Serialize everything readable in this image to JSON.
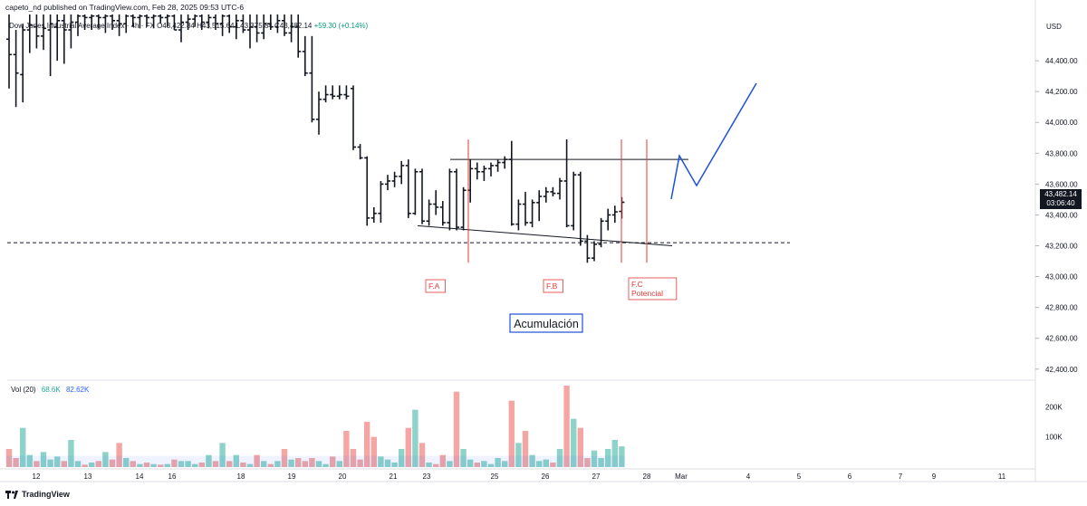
{
  "header": {
    "publisher": "capeto_nd published on TradingView.com, Feb 28, 2025 09:53 UTC-6"
  },
  "legend": {
    "text": "Dow Jones Industrial Average Index · 4h · FX",
    "open": "O43,422.84",
    "high": "H43,515.64",
    "low": "L43,375.84",
    "close": "C43,482.14",
    "change": "+59.30 (+0.14%)"
  },
  "currency": "USD",
  "last_price": {
    "value": "43,482.14",
    "countdown": "03:06:40"
  },
  "volume_legend": {
    "label": "Vol (20)",
    "value1": "68.6K",
    "value2": "82.62K"
  },
  "footer": {
    "brand": "TradingView"
  },
  "colors": {
    "up": "#26a69a",
    "down": "#ef5350",
    "bar": "#131722",
    "annotation_blue": "#1e50d6",
    "phase_red": "#e53935"
  },
  "chart_data": {
    "type": "ohlc-bar",
    "price_axis": {
      "ylim": [
        42340,
        44700
      ],
      "ticks": [
        "44,400.00",
        "44,200.00",
        "44,000.00",
        "43,800.00",
        "43,600.00",
        "43,400.00",
        "43,200.00",
        "43,000.00",
        "42,800.00",
        "42,600.00",
        "42,400.00"
      ],
      "tick_values": [
        44400,
        44200,
        44000,
        43800,
        43600,
        43400,
        43200,
        43000,
        42800,
        42600,
        42400
      ]
    },
    "volume_axis": {
      "ticks": [
        "200K",
        "100K"
      ],
      "tick_values": [
        200000,
        100000
      ],
      "ylim": [
        0,
        270000
      ]
    },
    "x_axis": {
      "labels": [
        "12",
        "13",
        "14",
        "16",
        "18",
        "19",
        "20",
        "21",
        "23",
        "25",
        "26",
        "27",
        "28",
        "Mar",
        "4",
        "5",
        "6",
        "7",
        "9",
        "11"
      ]
    },
    "bars": [
      {
        "o": 44540,
        "h": 44700,
        "l": 44220,
        "c": 44440,
        "v": 60000,
        "up": false
      },
      {
        "o": 44440,
        "h": 44600,
        "l": 44100,
        "c": 44320,
        "v": 30000,
        "up": false
      },
      {
        "o": 44310,
        "h": 44640,
        "l": 44130,
        "c": 44600,
        "v": 130000,
        "up": true
      },
      {
        "o": 44600,
        "h": 44700,
        "l": 44450,
        "c": 44630,
        "v": 40000,
        "up": true
      },
      {
        "o": 44620,
        "h": 44700,
        "l": 44480,
        "c": 44560,
        "v": 20000,
        "up": false
      },
      {
        "o": 44560,
        "h": 44700,
        "l": 44470,
        "c": 44610,
        "v": 50000,
        "up": true
      },
      {
        "o": 44600,
        "h": 44700,
        "l": 44300,
        "c": 44640,
        "v": 25000,
        "up": true
      },
      {
        "o": 44620,
        "h": 44700,
        "l": 44400,
        "c": 44660,
        "v": 35000,
        "up": true
      },
      {
        "o": 44660,
        "h": 44700,
        "l": 44380,
        "c": 44600,
        "v": 20000,
        "up": false
      },
      {
        "o": 44600,
        "h": 44700,
        "l": 44480,
        "c": 44650,
        "v": 90000,
        "up": true
      },
      {
        "o": 44650,
        "h": 44700,
        "l": 44560,
        "c": 44690,
        "v": 20000,
        "up": true
      },
      {
        "o": 44690,
        "h": 44700,
        "l": 44600,
        "c": 44680,
        "v": 8000,
        "up": false
      },
      {
        "o": 44680,
        "h": 44700,
        "l": 44600,
        "c": 44690,
        "v": 15000,
        "up": true
      },
      {
        "o": 44690,
        "h": 44700,
        "l": 44610,
        "c": 44680,
        "v": 20000,
        "up": false
      },
      {
        "o": 44680,
        "h": 44700,
        "l": 44580,
        "c": 44690,
        "v": 50000,
        "up": true
      },
      {
        "o": 44690,
        "h": 44700,
        "l": 44600,
        "c": 44660,
        "v": 25000,
        "up": false
      },
      {
        "o": 44660,
        "h": 44700,
        "l": 44560,
        "c": 44640,
        "v": 80000,
        "up": false
      },
      {
        "o": 44640,
        "h": 44700,
        "l": 44580,
        "c": 44690,
        "v": 30000,
        "up": true
      },
      {
        "o": 44690,
        "h": 44700,
        "l": 44620,
        "c": 44680,
        "v": 20000,
        "up": false
      },
      {
        "o": 44680,
        "h": 44700,
        "l": 44610,
        "c": 44690,
        "v": 10000,
        "up": true
      },
      {
        "o": 44690,
        "h": 44700,
        "l": 44620,
        "c": 44680,
        "v": 15000,
        "up": false
      },
      {
        "o": 44680,
        "h": 44700,
        "l": 44610,
        "c": 44690,
        "v": 10000,
        "up": true
      },
      {
        "o": 44690,
        "h": 44700,
        "l": 44640,
        "c": 44680,
        "v": 8000,
        "up": false
      },
      {
        "o": 44680,
        "h": 44700,
        "l": 44620,
        "c": 44690,
        "v": 10000,
        "up": true
      },
      {
        "o": 44690,
        "h": 44700,
        "l": 44600,
        "c": 44600,
        "v": 25000,
        "up": false
      },
      {
        "o": 44600,
        "h": 44700,
        "l": 44520,
        "c": 44650,
        "v": 20000,
        "up": true
      },
      {
        "o": 44650,
        "h": 44700,
        "l": 44600,
        "c": 44670,
        "v": 20000,
        "up": true
      },
      {
        "o": 44670,
        "h": 44700,
        "l": 44620,
        "c": 44690,
        "v": 10000,
        "up": true
      },
      {
        "o": 44690,
        "h": 44700,
        "l": 44600,
        "c": 44650,
        "v": 15000,
        "up": false
      },
      {
        "o": 44650,
        "h": 44700,
        "l": 44610,
        "c": 44680,
        "v": 40000,
        "up": true
      },
      {
        "o": 44680,
        "h": 44700,
        "l": 44600,
        "c": 44640,
        "v": 20000,
        "up": false
      },
      {
        "o": 44640,
        "h": 44700,
        "l": 44560,
        "c": 44690,
        "v": 80000,
        "up": true
      },
      {
        "o": 44690,
        "h": 44700,
        "l": 44580,
        "c": 44620,
        "v": 20000,
        "up": false
      },
      {
        "o": 44620,
        "h": 44700,
        "l": 44540,
        "c": 44660,
        "v": 40000,
        "up": true
      },
      {
        "o": 44660,
        "h": 44700,
        "l": 44580,
        "c": 44600,
        "v": 15000,
        "up": false
      },
      {
        "o": 44600,
        "h": 44700,
        "l": 44480,
        "c": 44620,
        "v": 10000,
        "up": true
      },
      {
        "o": 44620,
        "h": 44700,
        "l": 44520,
        "c": 44580,
        "v": 40000,
        "up": false
      },
      {
        "o": 44580,
        "h": 44700,
        "l": 44540,
        "c": 44640,
        "v": 20000,
        "up": true
      },
      {
        "o": 44640,
        "h": 44700,
        "l": 44600,
        "c": 44620,
        "v": 10000,
        "up": false
      },
      {
        "o": 44620,
        "h": 44700,
        "l": 44580,
        "c": 44660,
        "v": 20000,
        "up": true
      },
      {
        "o": 44660,
        "h": 44700,
        "l": 44560,
        "c": 44580,
        "v": 60000,
        "up": false
      },
      {
        "o": 44580,
        "h": 44700,
        "l": 44520,
        "c": 44620,
        "v": 25000,
        "up": true
      },
      {
        "o": 44620,
        "h": 44700,
        "l": 44420,
        "c": 44460,
        "v": 30000,
        "up": false
      },
      {
        "o": 44460,
        "h": 44560,
        "l": 44300,
        "c": 44320,
        "v": 20000,
        "up": false
      },
      {
        "o": 44320,
        "h": 44560,
        "l": 44000,
        "c": 44020,
        "v": 30000,
        "up": false
      },
      {
        "o": 44020,
        "h": 44200,
        "l": 43920,
        "c": 44150,
        "v": 20000,
        "up": true
      },
      {
        "o": 44150,
        "h": 44240,
        "l": 44130,
        "c": 44180,
        "v": 10000,
        "up": true
      },
      {
        "o": 44180,
        "h": 44240,
        "l": 44150,
        "c": 44170,
        "v": 35000,
        "up": false
      },
      {
        "o": 44170,
        "h": 44240,
        "l": 44150,
        "c": 44180,
        "v": 20000,
        "up": true
      },
      {
        "o": 44180,
        "h": 44240,
        "l": 44150,
        "c": 44170,
        "v": 120000,
        "up": false
      },
      {
        "o": 44220,
        "h": 44240,
        "l": 43820,
        "c": 43840,
        "v": 60000,
        "up": false
      },
      {
        "o": 43840,
        "h": 43860,
        "l": 43760,
        "c": 43770,
        "v": 25000,
        "up": false
      },
      {
        "o": 43770,
        "h": 43780,
        "l": 43330,
        "c": 43380,
        "v": 150000,
        "up": false
      },
      {
        "o": 43380,
        "h": 43450,
        "l": 43350,
        "c": 43410,
        "v": 100000,
        "up": false
      },
      {
        "o": 43410,
        "h": 43620,
        "l": 43350,
        "c": 43600,
        "v": 35000,
        "up": true
      },
      {
        "o": 43600,
        "h": 43660,
        "l": 43560,
        "c": 43620,
        "v": 25000,
        "up": true
      },
      {
        "o": 43620,
        "h": 43680,
        "l": 43580,
        "c": 43650,
        "v": 15000,
        "up": true
      },
      {
        "o": 43650,
        "h": 43750,
        "l": 43600,
        "c": 43720,
        "v": 60000,
        "up": true
      },
      {
        "o": 43720,
        "h": 43760,
        "l": 43380,
        "c": 43410,
        "v": 130000,
        "up": false
      },
      {
        "o": 43410,
        "h": 43700,
        "l": 43400,
        "c": 43680,
        "v": 190000,
        "up": true
      },
      {
        "o": 43680,
        "h": 43700,
        "l": 43340,
        "c": 43360,
        "v": 80000,
        "up": false
      },
      {
        "o": 43360,
        "h": 43500,
        "l": 43330,
        "c": 43470,
        "v": 15000,
        "up": true
      },
      {
        "o": 43470,
        "h": 43560,
        "l": 43400,
        "c": 43450,
        "v": 10000,
        "up": false
      },
      {
        "o": 43450,
        "h": 43490,
        "l": 43330,
        "c": 43350,
        "v": 40000,
        "up": false
      },
      {
        "o": 43350,
        "h": 43700,
        "l": 43300,
        "c": 43680,
        "v": 20000,
        "up": true
      },
      {
        "o": 43680,
        "h": 43700,
        "l": 43300,
        "c": 43320,
        "v": 250000,
        "up": false
      },
      {
        "o": 43320,
        "h": 43580,
        "l": 43300,
        "c": 43560,
        "v": 60000,
        "up": true
      },
      {
        "o": 43560,
        "h": 43760,
        "l": 43480,
        "c": 43700,
        "v": 25000,
        "up": true
      },
      {
        "o": 43700,
        "h": 43740,
        "l": 43630,
        "c": 43680,
        "v": 15000,
        "up": false
      },
      {
        "o": 43680,
        "h": 43720,
        "l": 43620,
        "c": 43700,
        "v": 20000,
        "up": true
      },
      {
        "o": 43700,
        "h": 43740,
        "l": 43650,
        "c": 43720,
        "v": 10000,
        "up": true
      },
      {
        "o": 43720,
        "h": 43760,
        "l": 43680,
        "c": 43740,
        "v": 30000,
        "up": true
      },
      {
        "o": 43740,
        "h": 43780,
        "l": 43700,
        "c": 43760,
        "v": 20000,
        "up": true
      },
      {
        "o": 43760,
        "h": 43880,
        "l": 43330,
        "c": 43340,
        "v": 220000,
        "up": false
      },
      {
        "o": 43340,
        "h": 43500,
        "l": 43300,
        "c": 43470,
        "v": 80000,
        "up": true
      },
      {
        "o": 43470,
        "h": 43550,
        "l": 43330,
        "c": 43350,
        "v": 120000,
        "up": false
      },
      {
        "o": 43350,
        "h": 43500,
        "l": 43320,
        "c": 43480,
        "v": 40000,
        "up": true
      },
      {
        "o": 43480,
        "h": 43560,
        "l": 43360,
        "c": 43520,
        "v": 20000,
        "up": true
      },
      {
        "o": 43520,
        "h": 43580,
        "l": 43480,
        "c": 43550,
        "v": 25000,
        "up": true
      },
      {
        "o": 43550,
        "h": 43580,
        "l": 43520,
        "c": 43540,
        "v": 15000,
        "up": false
      },
      {
        "o": 43540,
        "h": 43640,
        "l": 43500,
        "c": 43620,
        "v": 60000,
        "up": true
      },
      {
        "o": 43620,
        "h": 43890,
        "l": 43320,
        "c": 43330,
        "v": 270000,
        "up": false
      },
      {
        "o": 43330,
        "h": 43680,
        "l": 43300,
        "c": 43660,
        "v": 160000,
        "up": true
      },
      {
        "o": 43660,
        "h": 43680,
        "l": 43200,
        "c": 43230,
        "v": 130000,
        "up": false
      },
      {
        "o": 43230,
        "h": 43270,
        "l": 43090,
        "c": 43120,
        "v": 30000,
        "up": false
      },
      {
        "o": 43120,
        "h": 43230,
        "l": 43100,
        "c": 43210,
        "v": 55000,
        "up": true
      },
      {
        "o": 43210,
        "h": 43380,
        "l": 43190,
        "c": 43360,
        "v": 30000,
        "up": true
      },
      {
        "o": 43360,
        "h": 43440,
        "l": 43300,
        "c": 43400,
        "v": 60000,
        "up": true
      },
      {
        "o": 43400,
        "h": 43460,
        "l": 43350,
        "c": 43420,
        "v": 90000,
        "up": true
      },
      {
        "o": 43422.84,
        "h": 43515.64,
        "l": 43375.84,
        "c": 43482.14,
        "v": 68600,
        "up": true
      }
    ],
    "volume_ma_level": 82620,
    "annotations": {
      "support_level": 43220,
      "resistance_level": 43760,
      "phases": [
        "F.A",
        "F.B",
        "F.C",
        "Potencial"
      ],
      "label": "Acumulación"
    }
  }
}
